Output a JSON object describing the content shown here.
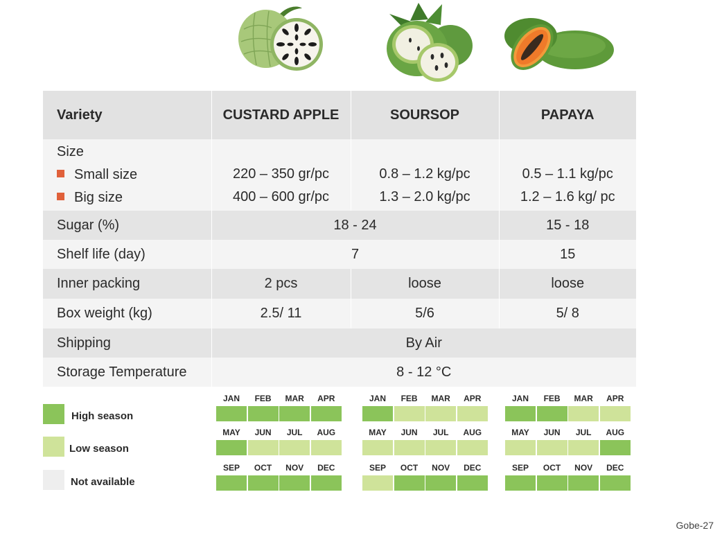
{
  "table": {
    "header": {
      "label": "Variety",
      "columns": [
        "CUSTARD APPLE",
        "SOURSOP",
        "PAPAYA"
      ]
    },
    "size": {
      "label": "Size",
      "small_label": "Small size",
      "big_label": "Big size",
      "custard": {
        "small": "220 – 350 gr/pc",
        "big": "400 – 600 gr/pc"
      },
      "soursop": {
        "small": "0.8 – 1.2 kg/pc",
        "big": "1.3 – 2.0 kg/pc"
      },
      "papaya": {
        "small": "0.5 – 1.1 kg/pc",
        "big": "1.2 – 1.6 kg/ pc"
      }
    },
    "sugar": {
      "label": "Sugar (%)",
      "custard_soursop": "18 - 24",
      "papaya": "15 - 18"
    },
    "shelf_life": {
      "label": "Shelf life (day)",
      "custard_soursop": "7",
      "papaya": "15"
    },
    "inner_packing": {
      "label": "Inner packing",
      "custard": "2 pcs",
      "soursop": "loose",
      "papaya": "loose"
    },
    "box_weight": {
      "label": "Box weight (kg)",
      "custard": "2.5/ 11",
      "soursop": "5/6",
      "papaya": "5/ 8"
    },
    "shipping": {
      "label": "Shipping",
      "value": "By Air"
    },
    "storage": {
      "label": "Storage Temperature",
      "value": "8 - 12 °C"
    }
  },
  "legend": {
    "high": "High season",
    "low": "Low season",
    "na": "Not available"
  },
  "colors": {
    "high": "#8bc45a",
    "low": "#cfe39a",
    "na": "#eeeeee",
    "accent": "#6aa83b",
    "bullet": "#e0603a"
  },
  "months": [
    "JAN",
    "FEB",
    "MAR",
    "APR",
    "MAY",
    "JUN",
    "JUL",
    "AUG",
    "SEP",
    "OCT",
    "NOV",
    "DEC"
  ],
  "seasons": {
    "custard_apple": [
      "high",
      "high",
      "high",
      "high",
      "high",
      "low",
      "low",
      "low",
      "high",
      "high",
      "high",
      "high"
    ],
    "soursop": [
      "high",
      "low",
      "low",
      "low",
      "low",
      "low",
      "low",
      "low",
      "low",
      "high",
      "high",
      "high"
    ],
    "papaya": [
      "high",
      "high",
      "low",
      "low",
      "low",
      "low",
      "low",
      "high",
      "high",
      "high",
      "high",
      "high"
    ]
  },
  "footer": {
    "page": "Gobe-27"
  }
}
